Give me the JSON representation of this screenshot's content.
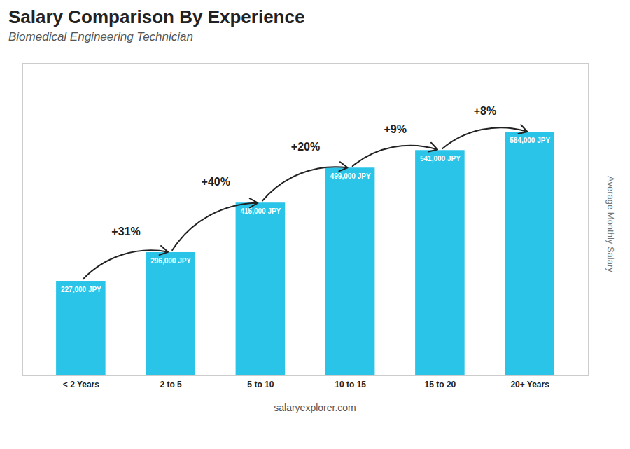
{
  "chart_data": {
    "type": "bar",
    "title": "Salary Comparison By Experience",
    "subtitle": "Biomedical Engineering Technician",
    "ylabel": "Average Monthly Salary",
    "caption": "salaryexplorer.com",
    "categories": [
      "< 2 Years",
      "2 to 5",
      "5 to 10",
      "10 to 15",
      "15 to 20",
      "20+ Years"
    ],
    "values": [
      227000,
      296000,
      415000,
      499000,
      541000,
      584000
    ],
    "value_labels": [
      "227,000 JPY",
      "296,000 JPY",
      "415,000 JPY",
      "499,000 JPY",
      "541,000 JPY",
      "584,000 JPY"
    ],
    "data_labels": true,
    "annotations": [
      "+31%",
      "+40%",
      "+20%",
      "+9%",
      "+8%"
    ],
    "color": "#29c4e8",
    "ylim": [
      0,
      750000
    ],
    "tick_labels": "x",
    "grid": false
  }
}
